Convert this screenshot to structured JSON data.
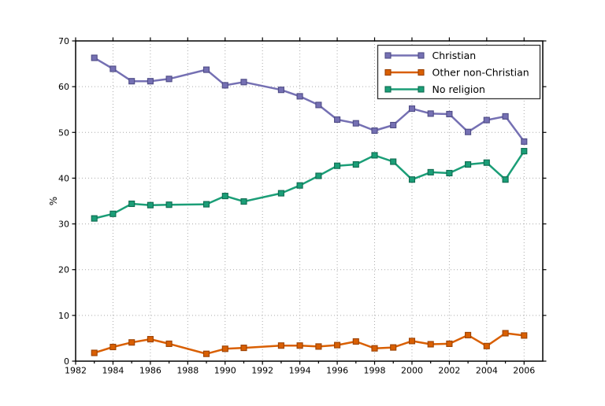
{
  "figure": {
    "background": "#ffffff",
    "frame_color": "#000000",
    "grid_color": "#aaaaaa"
  },
  "chart_data": {
    "type": "line",
    "title": "",
    "xlabel": "",
    "ylabel": "%",
    "xlim": [
      1982,
      2007
    ],
    "ylim": [
      0,
      70
    ],
    "x_tick_labels": [
      "1982",
      "1984",
      "1986",
      "1988",
      "1990",
      "1992",
      "1994",
      "1996",
      "1998",
      "2000",
      "2002",
      "2004",
      "2006"
    ],
    "x_ticks": [
      1982,
      1984,
      1986,
      1988,
      1990,
      1992,
      1994,
      1996,
      1998,
      2000,
      2002,
      2004,
      2006
    ],
    "x_minor_ticks": [
      1983,
      1985,
      1987,
      1989,
      1991,
      1993,
      1995,
      1997,
      1999,
      2001,
      2003,
      2005
    ],
    "y_ticks": [
      0,
      10,
      20,
      30,
      40,
      50,
      60,
      70
    ],
    "y_tick_labels": [
      "0",
      "10",
      "20",
      "30",
      "40",
      "50",
      "60",
      "70"
    ],
    "grid": true,
    "grid_style": "dotted",
    "legend_position": "upper right",
    "marker": "square",
    "x": [
      1983,
      1984,
      1985,
      1986,
      1987,
      1989,
      1990,
      1991,
      1993,
      1994,
      1995,
      1996,
      1997,
      1998,
      1999,
      2000,
      2001,
      2002,
      2003,
      2004,
      2005,
      2006
    ],
    "series": [
      {
        "name": "Christian",
        "color": "#7570b3",
        "marker_edge": "#4f4c86",
        "values": [
          66.3,
          63.9,
          61.2,
          61.2,
          61.7,
          63.7,
          60.3,
          61.0,
          59.3,
          57.9,
          56.0,
          52.8,
          52.0,
          50.4,
          51.6,
          55.2,
          54.1,
          54.0,
          50.1,
          52.7,
          53.5,
          48.0
        ]
      },
      {
        "name": "Other non-Christian",
        "color": "#d95f02",
        "marker_edge": "#9c4202",
        "values": [
          1.8,
          3.1,
          4.1,
          4.8,
          3.8,
          1.6,
          2.7,
          2.9,
          3.4,
          3.4,
          3.2,
          3.5,
          4.3,
          2.8,
          3.0,
          4.4,
          3.7,
          3.8,
          5.7,
          3.3,
          6.1,
          5.6
        ]
      },
      {
        "name": "No religion",
        "color": "#1b9e77",
        "marker_edge": "#0f6b50",
        "values": [
          31.2,
          32.2,
          34.4,
          34.1,
          34.2,
          34.3,
          36.1,
          34.9,
          36.7,
          38.4,
          40.5,
          42.7,
          43.0,
          45.0,
          43.6,
          39.7,
          41.3,
          41.1,
          43.0,
          43.4,
          39.7,
          45.9
        ]
      }
    ]
  }
}
